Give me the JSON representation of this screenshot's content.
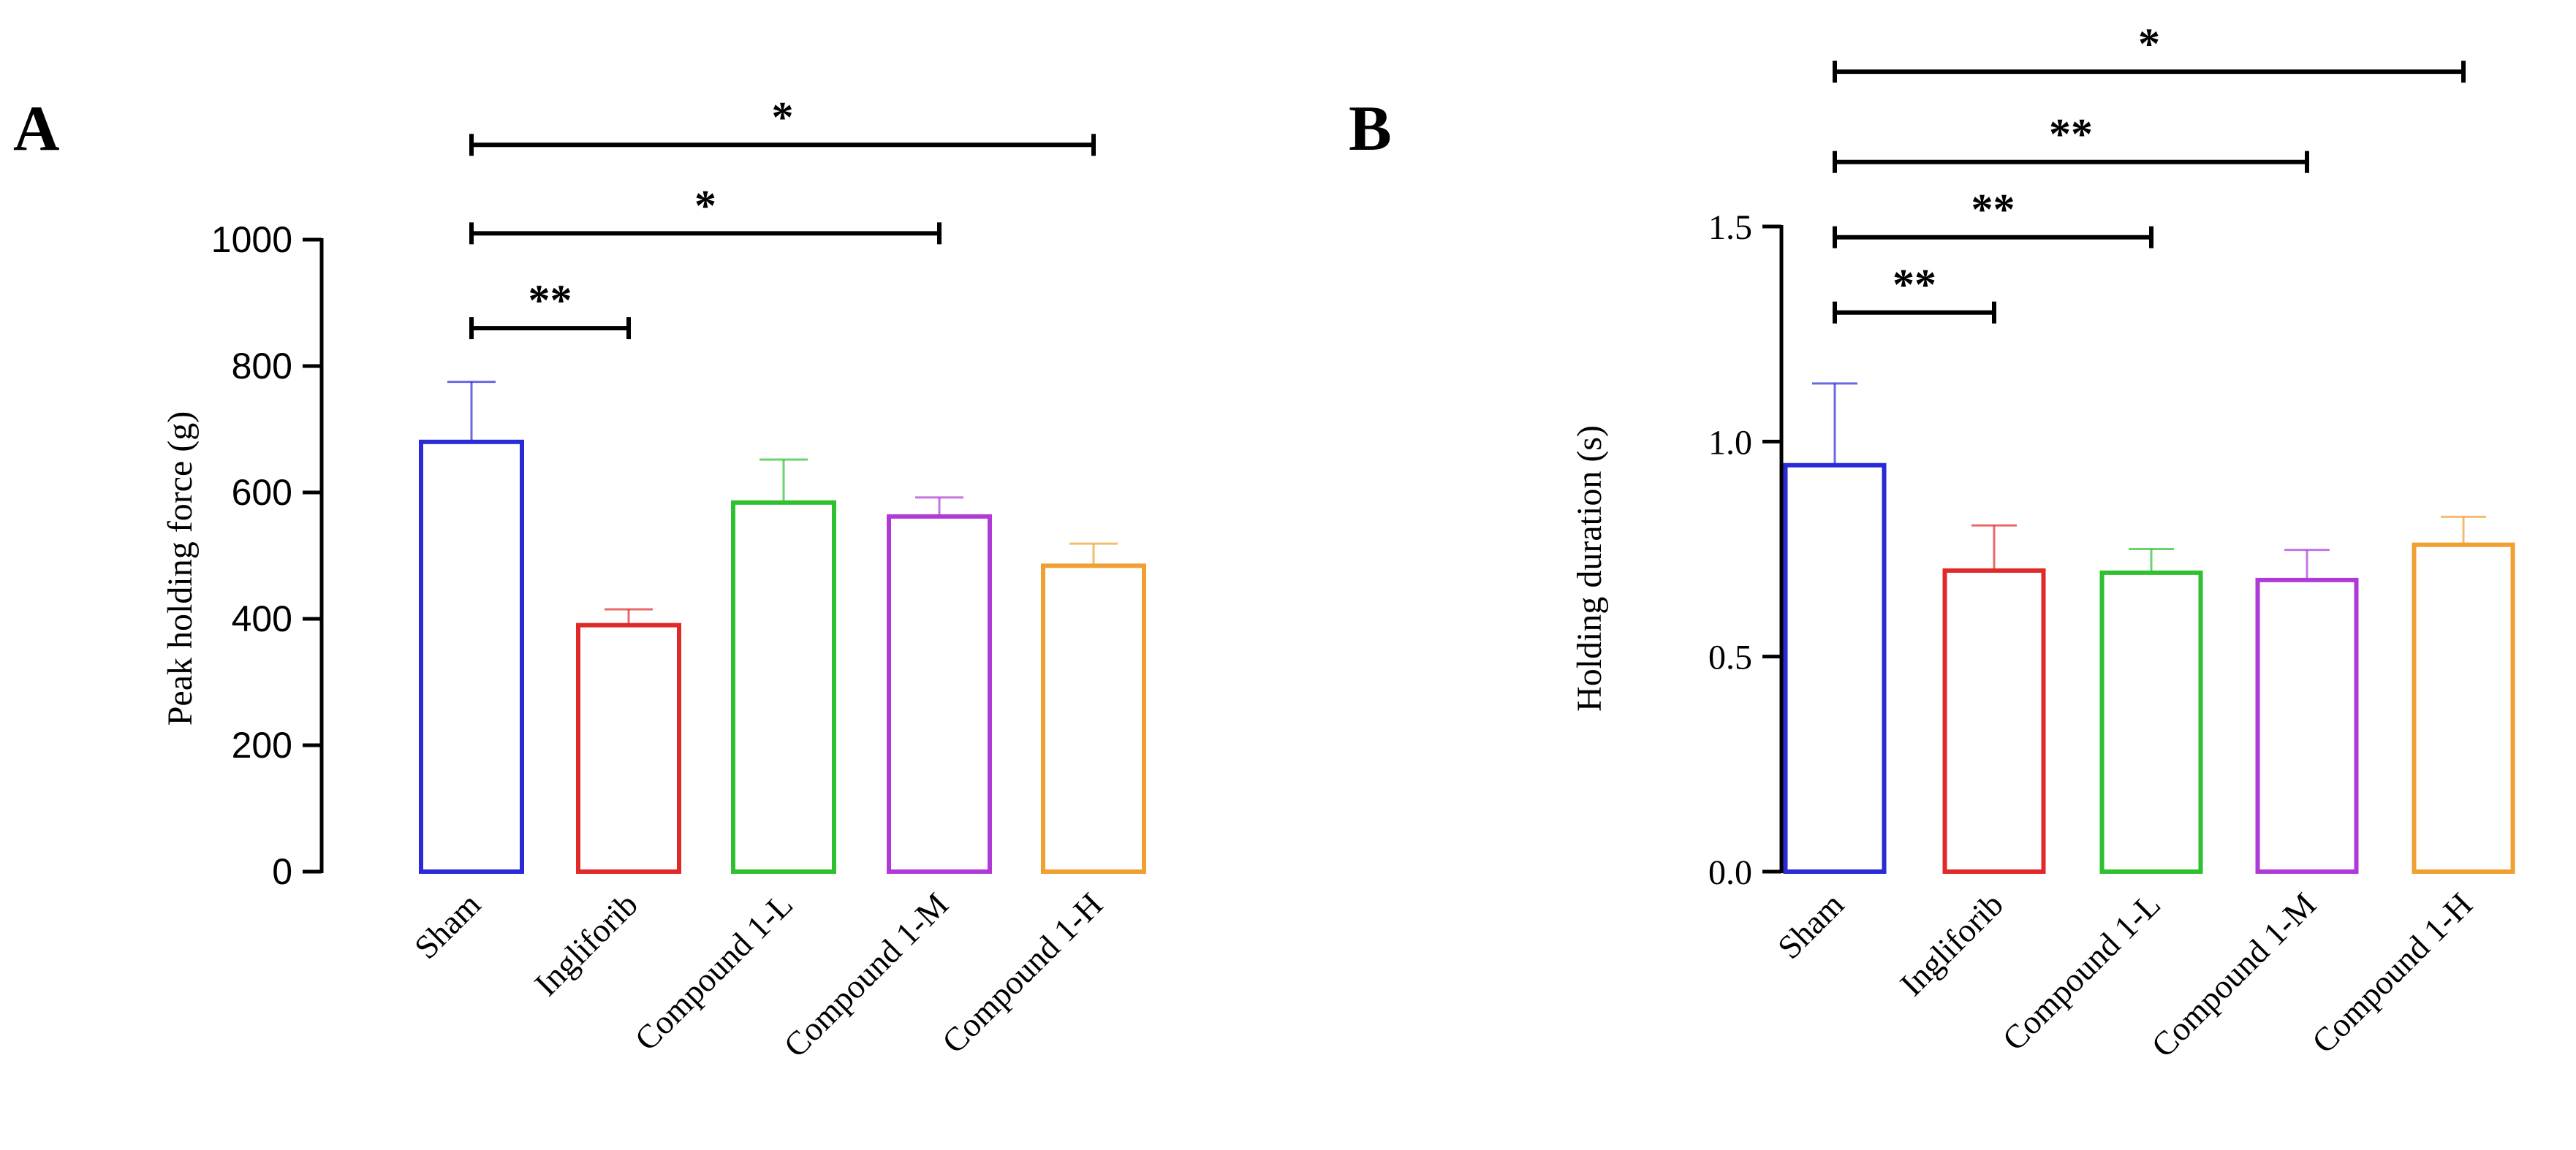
{
  "chart_data": [
    {
      "type": "bar",
      "panel_label": "A",
      "title": "",
      "xlabel": "",
      "ylabel": "Peak holding force (g)",
      "ylim": [
        0,
        1000
      ],
      "yticks": [
        0,
        200,
        400,
        600,
        800,
        1000
      ],
      "ytick_labels": [
        "0",
        "200",
        "400",
        "600",
        "800",
        "1000"
      ],
      "grid": false,
      "categories": [
        "Sham",
        "Ingliforib",
        "Compound 1-L",
        "Compound 1-M",
        "Compound 1-H"
      ],
      "values": [
        680,
        390,
        584,
        562,
        484
      ],
      "errors": [
        95,
        25,
        68,
        30,
        35
      ],
      "colors": [
        "#2a2ad6",
        "#e02a2a",
        "#2ec02e",
        "#b03ad6",
        "#f0a030"
      ],
      "significance": [
        {
          "from": 0,
          "to": 1,
          "label": "**",
          "y": 860
        },
        {
          "from": 0,
          "to": 3,
          "label": "*",
          "y": 1010
        },
        {
          "from": 0,
          "to": 4,
          "label": "*",
          "y": 1150
        }
      ]
    },
    {
      "type": "bar",
      "panel_label": "B",
      "title": "",
      "xlabel": "",
      "ylabel": "Holding duration (s)",
      "ylim": [
        0,
        1.5
      ],
      "yticks": [
        0,
        0.5,
        1.0,
        1.5
      ],
      "ytick_labels": [
        "0.0",
        "0.5",
        "1.0",
        "1.5"
      ],
      "grid": false,
      "categories": [
        "Sham",
        "Ingliforib",
        "Compound 1-L",
        "Compound 1-M",
        "Compound 1-H"
      ],
      "values": [
        0.945,
        0.7,
        0.695,
        0.678,
        0.76
      ],
      "errors": [
        0.19,
        0.105,
        0.055,
        0.07,
        0.065
      ],
      "colors": [
        "#2a2ad6",
        "#e02a2a",
        "#2ec02e",
        "#b03ad6",
        "#f0a030"
      ],
      "significance": [
        {
          "from": 0,
          "to": 1,
          "label": "**",
          "y": 1.3
        },
        {
          "from": 0,
          "to": 2,
          "label": "**",
          "y": 1.475
        },
        {
          "from": 0,
          "to": 3,
          "label": "**",
          "y": 1.65
        },
        {
          "from": 0,
          "to": 4,
          "label": "*",
          "y": 1.86
        }
      ]
    }
  ]
}
